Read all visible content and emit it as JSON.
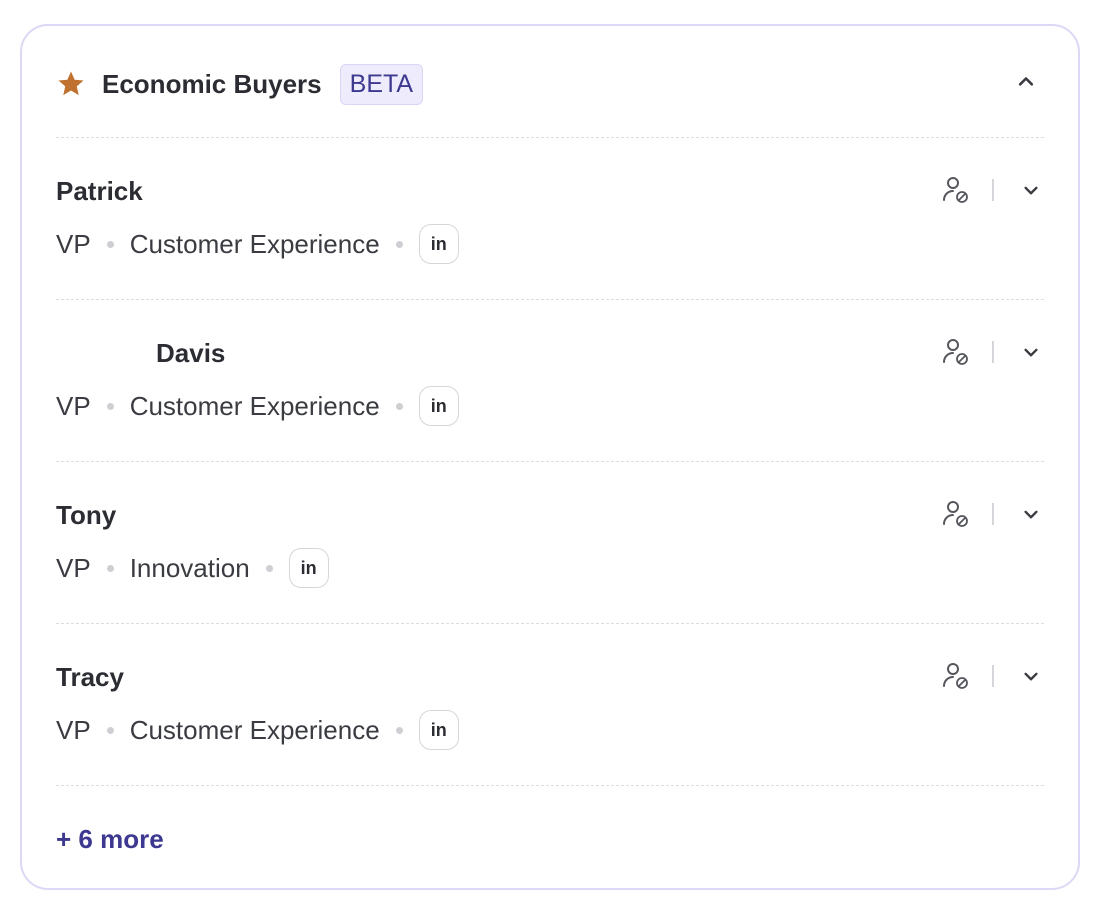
{
  "header": {
    "title": "Economic Buyers",
    "badge": "BETA",
    "star_color": "#c0702f"
  },
  "buyers": [
    {
      "name": "Patrick",
      "role": "VP",
      "department": "Customer Experience",
      "linkedin": "in"
    },
    {
      "name": "Davis",
      "role": "VP",
      "department": "Customer Experience",
      "linkedin": "in"
    },
    {
      "name": "Tony",
      "role": "VP",
      "department": "Innovation",
      "linkedin": "in"
    },
    {
      "name": "Tracy",
      "role": "VP",
      "department": "Customer Experience",
      "linkedin": "in"
    }
  ],
  "more_link": "+ 6 more",
  "colors": {
    "accent": "#3d3890",
    "border": "#dcd8f5",
    "badge_bg": "#eeecfc"
  }
}
